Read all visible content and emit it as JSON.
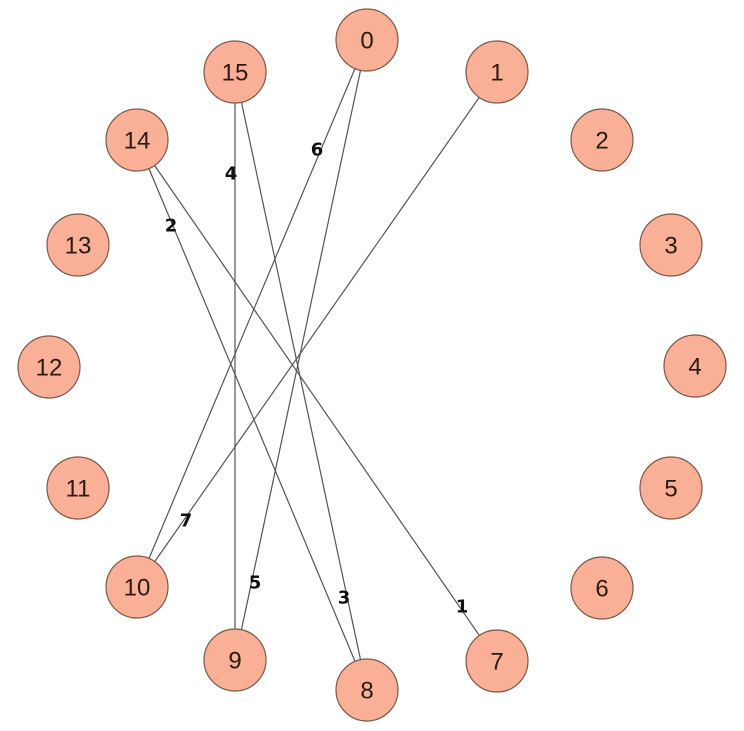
{
  "graph": {
    "node_color": "#F9B096",
    "nodes": [
      "0",
      "1",
      "2",
      "3",
      "4",
      "5",
      "6",
      "7",
      "8",
      "9",
      "10",
      "11",
      "12",
      "13",
      "14",
      "15"
    ],
    "edges": [
      {
        "source": "14",
        "target": "7",
        "label": "1"
      },
      {
        "source": "14",
        "target": "8",
        "label": "2"
      },
      {
        "source": "15",
        "target": "8",
        "label": "3"
      },
      {
        "source": "15",
        "target": "9",
        "label": "4"
      },
      {
        "source": "0",
        "target": "9",
        "label": "5"
      },
      {
        "source": "0",
        "target": "10",
        "label": "6"
      },
      {
        "source": "1",
        "target": "10",
        "label": "7"
      }
    ]
  }
}
